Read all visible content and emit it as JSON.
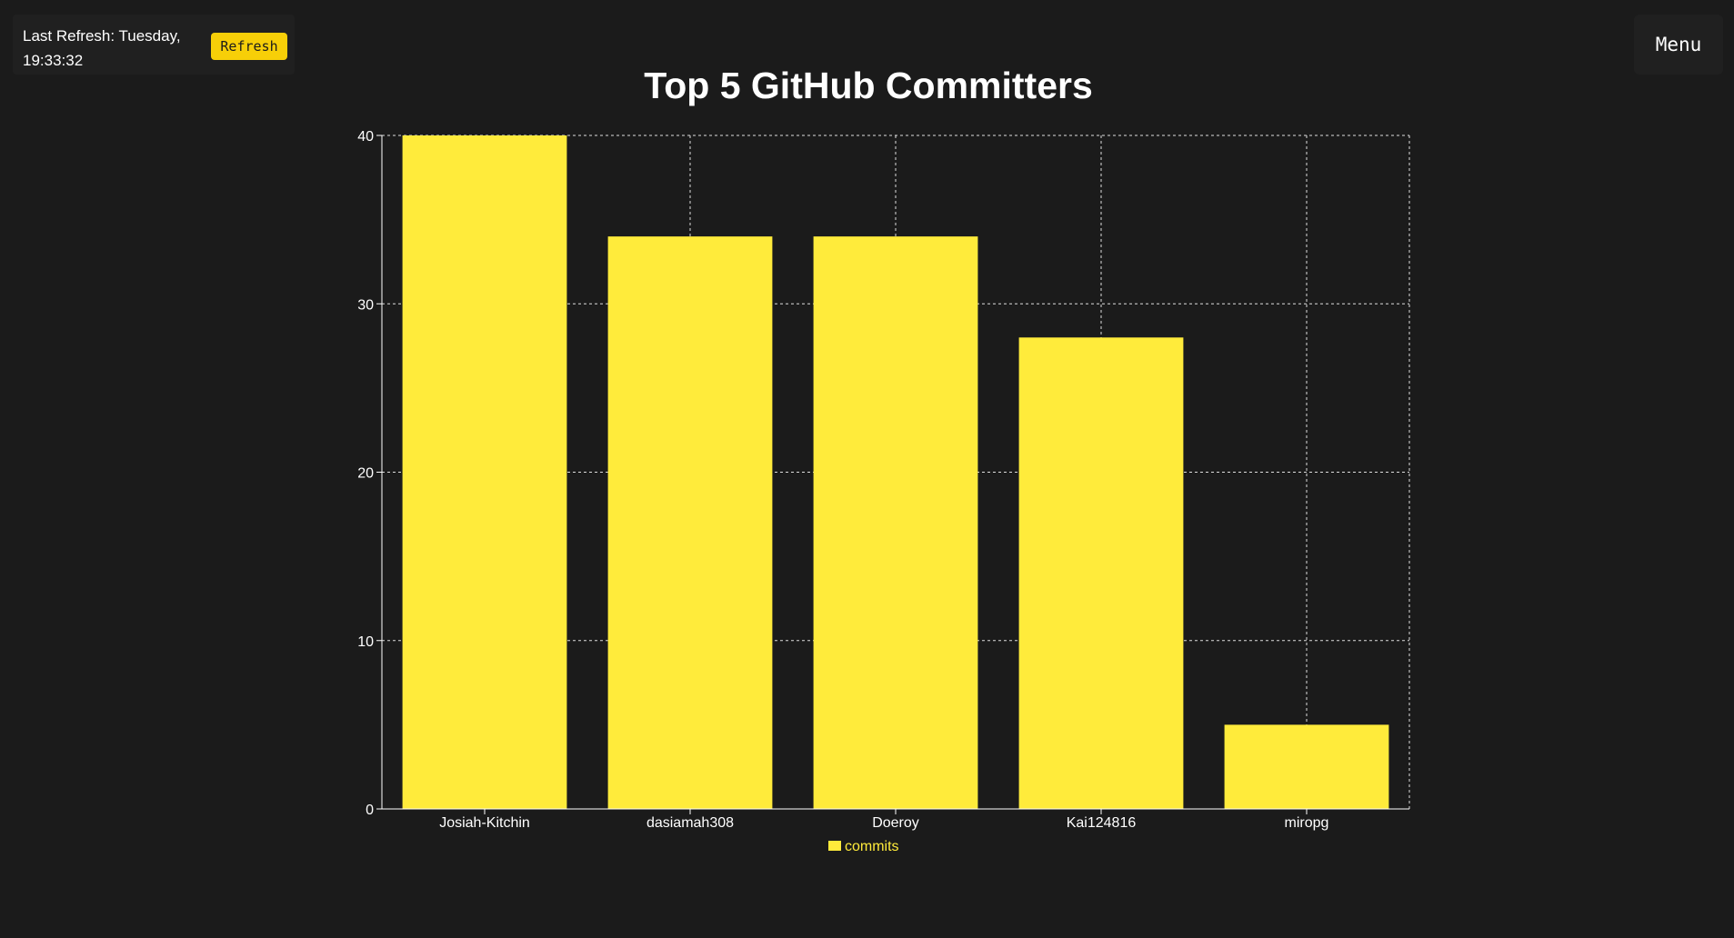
{
  "header": {
    "refresh_text": "Last Refresh: Tuesday, 19:33:32",
    "refresh_button": "Refresh",
    "menu_button": "Menu"
  },
  "colors": {
    "background": "#1b1b1b",
    "bar": "#ffeb3b",
    "accent_button": "#f7cf08",
    "grid": "#dddddd"
  },
  "chart_data": {
    "type": "bar",
    "title": "Top 5 GitHub Committers",
    "categories": [
      "Josiah-Kitchin",
      "dasiamah308",
      "Doeroy",
      "Kai124816",
      "miropg"
    ],
    "series": [
      {
        "name": "commits",
        "values": [
          40,
          34,
          34,
          28,
          5
        ]
      }
    ],
    "ylim": [
      0,
      40
    ],
    "yticks": [
      0,
      10,
      20,
      30,
      40
    ],
    "grid": true,
    "legend_position": "bottom"
  }
}
